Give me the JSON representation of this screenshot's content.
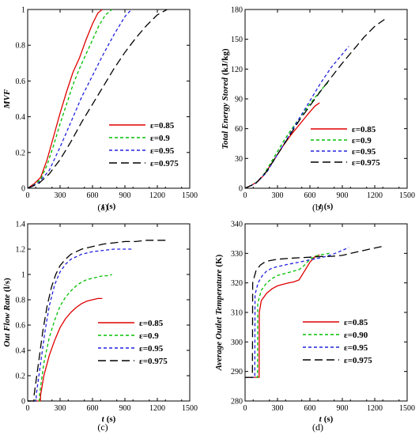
{
  "series_styles": [
    {
      "color": "#e00000",
      "dash": ""
    },
    {
      "color": "#00c000",
      "dash": "4,3"
    },
    {
      "color": "#2020e0",
      "dash": "4,3"
    },
    {
      "color": "#000000",
      "dash": "10,5"
    }
  ],
  "chart_data": [
    {
      "type": "line",
      "caption": "(a)",
      "xlabel": "t",
      "xunit": "(s)",
      "ylabel": "MVF",
      "yunit": "",
      "xlim": [
        0,
        1500
      ],
      "ylim": [
        0,
        1
      ],
      "xticks": [
        0,
        300,
        600,
        900,
        1200,
        1500
      ],
      "yticks": [
        0,
        0.2,
        0.4,
        0.6,
        0.8,
        1
      ],
      "ytick_labels": [
        "0",
        "0.2",
        "0.4",
        "0.6",
        "0.8",
        "1"
      ],
      "legend_position": "lower-right",
      "series": [
        {
          "name": "ε=0.85",
          "x": [
            0,
            60,
            120,
            180,
            240,
            300,
            360,
            420,
            480,
            540,
            600,
            650,
            690
          ],
          "y": [
            0,
            0.025,
            0.06,
            0.16,
            0.29,
            0.42,
            0.54,
            0.65,
            0.73,
            0.83,
            0.92,
            0.98,
            1.0
          ]
        },
        {
          "name": "ε=0.9",
          "x": [
            0,
            60,
            120,
            180,
            240,
            300,
            360,
            420,
            480,
            540,
            600,
            660,
            720,
            780
          ],
          "y": [
            0,
            0.02,
            0.05,
            0.13,
            0.24,
            0.36,
            0.47,
            0.58,
            0.67,
            0.75,
            0.83,
            0.91,
            0.97,
            1.0
          ]
        },
        {
          "name": "ε=0.95",
          "x": [
            0,
            100,
            200,
            300,
            400,
            500,
            600,
            700,
            800,
            900,
            960
          ],
          "y": [
            0,
            0.03,
            0.1,
            0.23,
            0.37,
            0.51,
            0.63,
            0.75,
            0.86,
            0.96,
            1.0
          ]
        },
        {
          "name": "ε=0.975",
          "x": [
            0,
            100,
            200,
            300,
            400,
            500,
            600,
            700,
            800,
            900,
            1000,
            1100,
            1200,
            1290
          ],
          "y": [
            0,
            0.025,
            0.08,
            0.16,
            0.26,
            0.37,
            0.47,
            0.57,
            0.67,
            0.76,
            0.84,
            0.91,
            0.97,
            1.0
          ]
        }
      ]
    },
    {
      "type": "line",
      "caption": "(b)",
      "xlabel": "t",
      "xunit": "(s)",
      "ylabel": "Total Energy Stored",
      "yunit": "(kJ/kg)",
      "xlim": [
        0,
        1500
      ],
      "ylim": [
        0,
        180
      ],
      "xticks": [
        0,
        300,
        600,
        900,
        1200,
        1500
      ],
      "yticks": [
        0,
        30,
        60,
        90,
        120,
        150,
        180
      ],
      "ytick_labels": [
        "0",
        "30",
        "60",
        "90",
        "120",
        "150",
        "180"
      ],
      "legend_position": "lower-right",
      "series": [
        {
          "name": "ε=0.85",
          "x": [
            0,
            60,
            120,
            180,
            240,
            300,
            360,
            420,
            480,
            540,
            600,
            650,
            690
          ],
          "y": [
            0,
            3,
            7,
            14,
            24,
            34,
            44,
            53,
            61,
            69,
            77,
            83,
            86
          ]
        },
        {
          "name": "ε=0.9",
          "x": [
            0,
            60,
            120,
            180,
            240,
            300,
            360,
            420,
            480,
            540,
            600,
            660,
            720,
            780
          ],
          "y": [
            0,
            3,
            7,
            15,
            26,
            37,
            48,
            58,
            67,
            76,
            85,
            93,
            101,
            108
          ]
        },
        {
          "name": "ε=0.95",
          "x": [
            0,
            100,
            200,
            300,
            400,
            500,
            600,
            700,
            800,
            900,
            960
          ],
          "y": [
            0,
            5,
            16,
            34,
            52,
            70,
            88,
            106,
            122,
            135,
            143
          ]
        },
        {
          "name": "ε=0.975",
          "x": [
            0,
            100,
            200,
            300,
            400,
            500,
            600,
            700,
            800,
            900,
            1000,
            1100,
            1200,
            1290
          ],
          "y": [
            0,
            5,
            17,
            34,
            51,
            68,
            83,
            98,
            112,
            126,
            139,
            152,
            163,
            170
          ]
        }
      ]
    },
    {
      "type": "line",
      "caption": "(c)",
      "xlabel": "t",
      "xunit": "(s)",
      "ylabel": "Out Flow Rate",
      "yunit": "(l/s)",
      "xlim": [
        0,
        1500
      ],
      "ylim": [
        0,
        1.4
      ],
      "xticks": [
        0,
        300,
        600,
        900,
        1200,
        1500
      ],
      "yticks": [
        0,
        0.2,
        0.4,
        0.6,
        0.8,
        1,
        1.2,
        1.4
      ],
      "ytick_labels": [
        "0",
        "0.2",
        "0.4",
        "0.6",
        "0.8",
        "1",
        "1.2",
        "1.4"
      ],
      "legend_position": "lower-right",
      "series": [
        {
          "name": "ε=0.85",
          "x": [
            0,
            118,
            120,
            150,
            200,
            250,
            300,
            350,
            400,
            450,
            500,
            550,
            600,
            650,
            690
          ],
          "y": [
            0,
            0,
            0.05,
            0.2,
            0.36,
            0.48,
            0.58,
            0.65,
            0.7,
            0.74,
            0.77,
            0.79,
            0.8,
            0.81,
            0.81
          ]
        },
        {
          "name": "ε=0.9",
          "x": [
            0,
            108,
            110,
            150,
            200,
            250,
            300,
            350,
            400,
            450,
            500,
            550,
            600,
            650,
            700,
            750,
            780
          ],
          "y": [
            0,
            0,
            0.05,
            0.3,
            0.5,
            0.64,
            0.75,
            0.82,
            0.87,
            0.91,
            0.94,
            0.96,
            0.97,
            0.98,
            0.99,
            0.99,
            1.0
          ]
        },
        {
          "name": "ε=0.95",
          "x": [
            0,
            78,
            80,
            120,
            160,
            200,
            250,
            300,
            350,
            400,
            500,
            600,
            700,
            800,
            900,
            960
          ],
          "y": [
            0,
            0,
            0.05,
            0.3,
            0.55,
            0.75,
            0.92,
            1.02,
            1.08,
            1.12,
            1.16,
            1.18,
            1.19,
            1.2,
            1.2,
            1.2
          ]
        },
        {
          "name": "ε=0.975",
          "x": [
            0,
            58,
            60,
            100,
            140,
            180,
            220,
            260,
            300,
            350,
            400,
            500,
            600,
            700,
            800,
            900,
            1000,
            1100,
            1200,
            1290
          ],
          "y": [
            0,
            0,
            0.05,
            0.3,
            0.55,
            0.75,
            0.9,
            1.0,
            1.07,
            1.12,
            1.16,
            1.2,
            1.22,
            1.24,
            1.25,
            1.26,
            1.26,
            1.27,
            1.27,
            1.27
          ]
        }
      ]
    },
    {
      "type": "line",
      "caption": "(d)",
      "xlabel": "t",
      "xunit": "(s)",
      "ylabel": "Average Outlet Temperature",
      "yunit": "(K)",
      "xlim": [
        0,
        1500
      ],
      "ylim": [
        280,
        340
      ],
      "xticks": [
        0,
        300,
        600,
        900,
        1200,
        1500
      ],
      "yticks": [
        280,
        290,
        300,
        310,
        320,
        330,
        340
      ],
      "ytick_labels": [
        "280",
        "290",
        "300",
        "310",
        "320",
        "330",
        "340"
      ],
      "legend_position": "lower-right",
      "series": [
        {
          "name": "ε=0.85",
          "x": [
            0,
            130,
            132,
            150,
            200,
            250,
            300,
            350,
            400,
            450,
            500,
            550,
            600,
            650,
            690
          ],
          "y": [
            288,
            288,
            310,
            314,
            316.5,
            318,
            319,
            319.5,
            320,
            320.3,
            321,
            324,
            327,
            329,
            329.5
          ]
        },
        {
          "name": "ε=0.90",
          "x": [
            0,
            115,
            117,
            150,
            200,
            250,
            300,
            400,
            500,
            550,
            600,
            650,
            700,
            750,
            780
          ],
          "y": [
            288,
            288,
            313,
            317.5,
            320,
            321.5,
            322.5,
            323.5,
            324.5,
            326,
            328,
            329,
            329.5,
            329.8,
            330
          ]
        },
        {
          "name": "ε=0.95",
          "x": [
            0,
            90,
            92,
            120,
            160,
            200,
            250,
            300,
            400,
            500,
            600,
            700,
            800,
            900,
            960
          ],
          "y": [
            288,
            288,
            316,
            320,
            322.5,
            324,
            325,
            325.5,
            326.3,
            327,
            327.8,
            328.5,
            329.5,
            331,
            332
          ]
        },
        {
          "name": "ε=0.975",
          "x": [
            0,
            68,
            70,
            100,
            140,
            180,
            220,
            300,
            400,
            500,
            600,
            700,
            800,
            900,
            1000,
            1100,
            1200,
            1290
          ],
          "y": [
            288,
            288,
            320,
            324,
            326,
            327,
            327.5,
            328,
            328.3,
            328.5,
            328.7,
            328.9,
            329,
            329.3,
            330.2,
            331,
            331.8,
            332.5
          ]
        }
      ]
    }
  ]
}
